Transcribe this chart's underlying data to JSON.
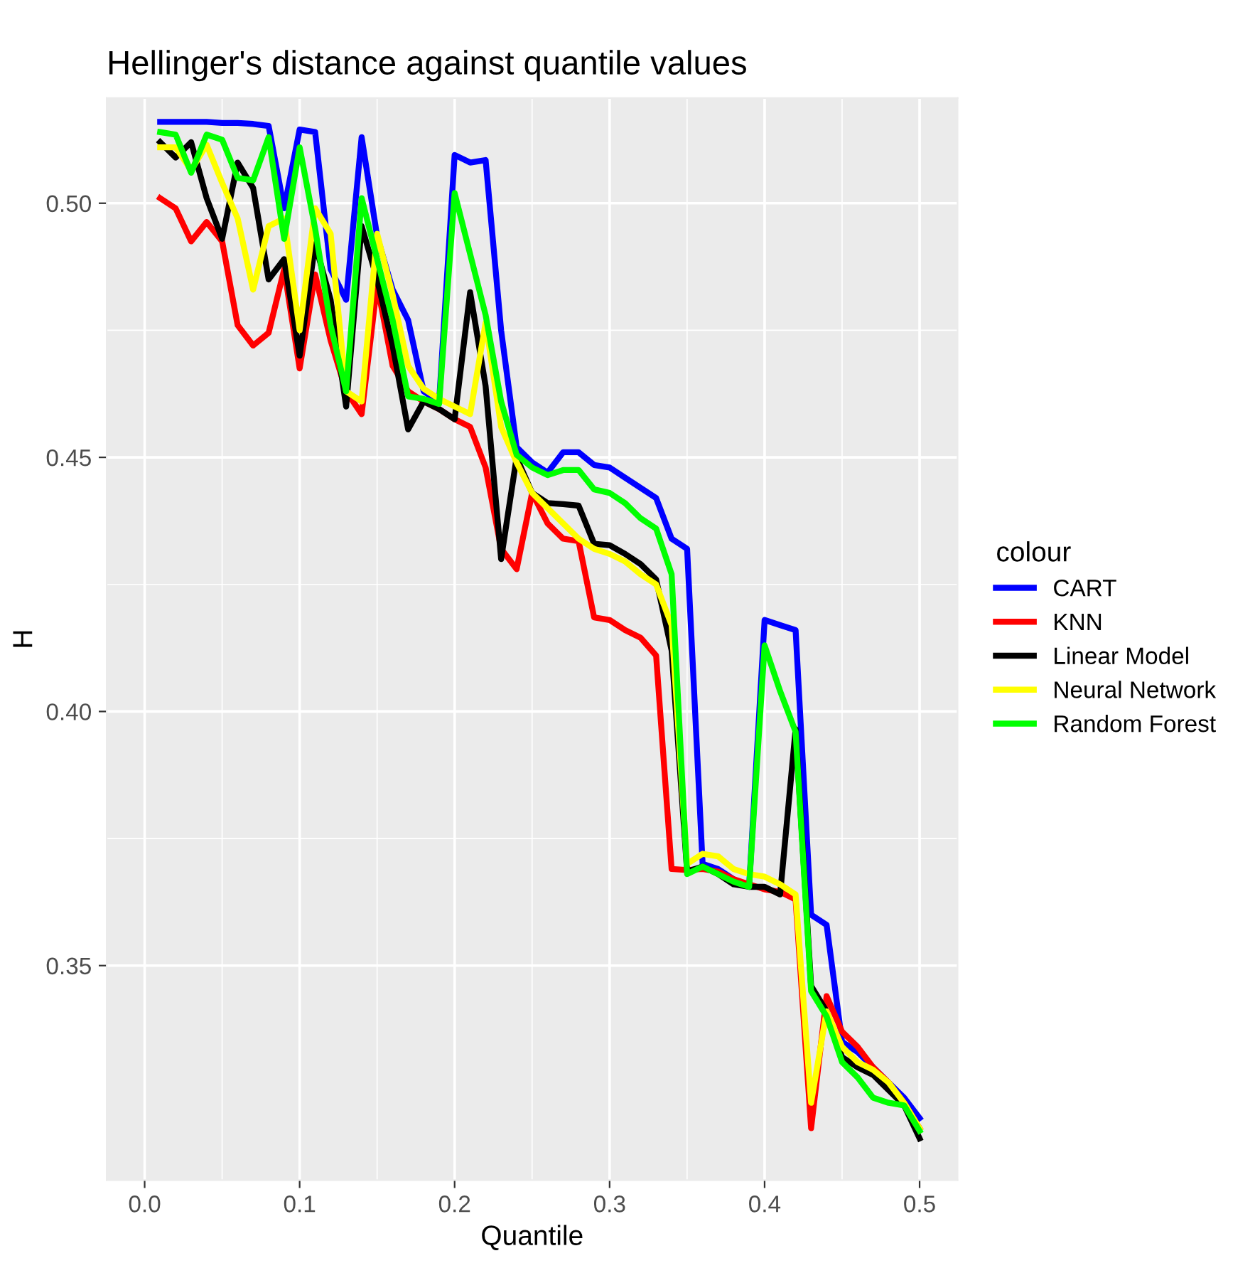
{
  "chart_data": {
    "type": "line",
    "title": "Hellinger's distance against quantile values",
    "xlabel": "Quantile",
    "ylabel": "H",
    "legend_title": "colour",
    "legend": "right",
    "grid": true,
    "x": [
      0.01,
      0.02,
      0.03,
      0.04,
      0.05,
      0.06,
      0.07,
      0.08,
      0.09,
      0.1,
      0.11,
      0.12,
      0.13,
      0.14,
      0.15,
      0.16,
      0.17,
      0.18,
      0.19,
      0.2,
      0.21,
      0.22,
      0.23,
      0.24,
      0.25,
      0.26,
      0.27,
      0.28,
      0.29,
      0.3,
      0.31,
      0.32,
      0.33,
      0.34,
      0.35,
      0.36,
      0.37,
      0.38,
      0.39,
      0.4,
      0.41,
      0.42,
      0.43,
      0.44,
      0.45,
      0.46,
      0.47,
      0.48,
      0.49,
      0.5
    ],
    "xlim": [
      -0.0245,
      0.5245
    ],
    "ylim": [
      0.3078,
      0.5207
    ],
    "xticks": [
      {
        "value": 0.0,
        "label": "0.0"
      },
      {
        "value": 0.1,
        "label": "0.1"
      },
      {
        "value": 0.2,
        "label": "0.2"
      },
      {
        "value": 0.3,
        "label": "0.3"
      },
      {
        "value": 0.4,
        "label": "0.4"
      },
      {
        "value": 0.5,
        "label": "0.5"
      }
    ],
    "yticks": [
      {
        "value": 0.35,
        "label": "0.35"
      },
      {
        "value": 0.4,
        "label": "0.40"
      },
      {
        "value": 0.45,
        "label": "0.45"
      },
      {
        "value": 0.5,
        "label": "0.50"
      }
    ],
    "series": [
      {
        "name": "CART",
        "color": "#0000ff",
        "values": [
          0.516,
          0.516,
          0.516,
          0.516,
          0.5158,
          0.5158,
          0.5156,
          0.5152,
          0.499,
          0.5145,
          0.514,
          0.487,
          0.481,
          0.513,
          0.4935,
          0.483,
          0.477,
          0.463,
          0.461,
          0.5095,
          0.508,
          0.5085,
          0.475,
          0.452,
          0.449,
          0.447,
          0.451,
          0.451,
          0.4485,
          0.448,
          0.446,
          0.444,
          0.442,
          0.434,
          0.432,
          0.37,
          0.369,
          0.367,
          0.3655,
          0.418,
          0.417,
          0.416,
          0.36,
          0.358,
          0.335,
          0.333,
          0.33,
          0.327,
          0.324,
          0.32
        ]
      },
      {
        "name": "KNN",
        "color": "#ff0000",
        "values": [
          0.501,
          0.499,
          0.4925,
          0.4963,
          0.4925,
          0.476,
          0.472,
          0.4745,
          0.487,
          0.4675,
          0.486,
          0.473,
          0.463,
          0.4585,
          0.484,
          0.468,
          0.463,
          0.461,
          0.4595,
          0.4575,
          0.456,
          0.448,
          0.432,
          0.428,
          0.443,
          0.437,
          0.434,
          0.4335,
          0.4185,
          0.418,
          0.416,
          0.4145,
          0.411,
          0.369,
          0.3688,
          0.369,
          0.3685,
          0.367,
          0.366,
          0.365,
          0.3645,
          0.363,
          0.318,
          0.344,
          0.337,
          0.334,
          0.33,
          0.327,
          0.323,
          0.318
        ]
      },
      {
        "name": "Linear Model",
        "color": "#000000",
        "values": [
          0.512,
          0.509,
          0.512,
          0.501,
          0.493,
          0.508,
          0.503,
          0.485,
          0.489,
          0.47,
          0.492,
          0.481,
          0.46,
          0.4955,
          0.485,
          0.472,
          0.4555,
          0.461,
          0.4595,
          0.4575,
          0.4825,
          0.464,
          0.43,
          0.45,
          0.443,
          0.441,
          0.4408,
          0.4405,
          0.433,
          0.4327,
          0.431,
          0.429,
          0.426,
          0.412,
          0.3685,
          0.3695,
          0.368,
          0.366,
          0.3655,
          0.3655,
          0.364,
          0.3965,
          0.346,
          0.341,
          0.332,
          0.33,
          0.3285,
          0.3255,
          0.3225,
          0.316
        ]
      },
      {
        "name": "Neural Network",
        "color": "#ffff00",
        "values": [
          0.511,
          0.511,
          0.5065,
          0.5115,
          0.504,
          0.497,
          0.483,
          0.4955,
          0.497,
          0.475,
          0.499,
          0.494,
          0.463,
          0.461,
          0.494,
          0.482,
          0.468,
          0.4635,
          0.4615,
          0.46,
          0.4585,
          0.4765,
          0.456,
          0.449,
          0.443,
          0.44,
          0.437,
          0.434,
          0.432,
          0.431,
          0.4295,
          0.427,
          0.425,
          0.417,
          0.37,
          0.372,
          0.3715,
          0.369,
          0.368,
          0.3675,
          0.366,
          0.364,
          0.323,
          0.341,
          0.334,
          0.331,
          0.3295,
          0.327,
          0.323,
          0.318
        ]
      },
      {
        "name": "Random Forest",
        "color": "#00ff00",
        "values": [
          0.514,
          0.5135,
          0.506,
          0.5135,
          0.5125,
          0.505,
          0.5045,
          0.513,
          0.493,
          0.511,
          0.495,
          0.476,
          0.463,
          0.501,
          0.489,
          0.477,
          0.462,
          0.4615,
          0.4605,
          0.502,
          0.49,
          0.478,
          0.461,
          0.4505,
          0.448,
          0.4465,
          0.4475,
          0.4475,
          0.4437,
          0.443,
          0.441,
          0.438,
          0.436,
          0.427,
          0.368,
          0.3695,
          0.368,
          0.3665,
          0.3655,
          0.413,
          0.404,
          0.396,
          0.345,
          0.34,
          0.331,
          0.328,
          0.324,
          0.323,
          0.3225,
          0.3175
        ]
      }
    ]
  }
}
